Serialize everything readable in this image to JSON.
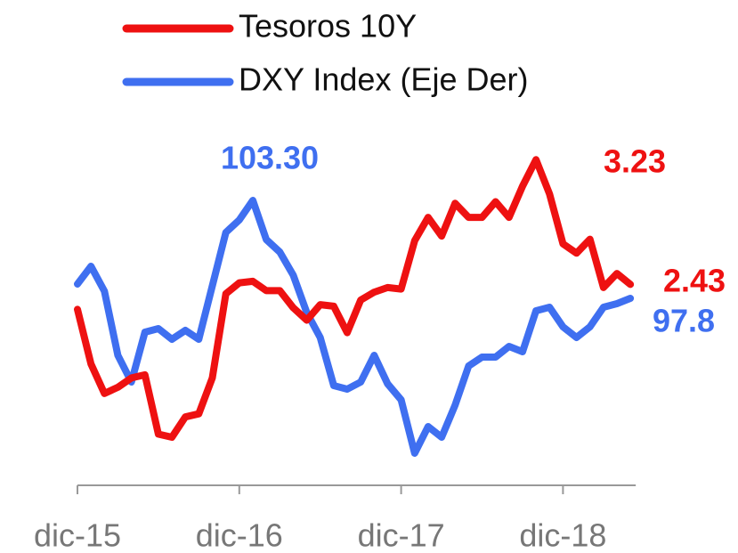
{
  "chart_data": {
    "type": "line",
    "categories": [
      "dic-15",
      null,
      null,
      null,
      null,
      null,
      null,
      null,
      null,
      null,
      null,
      null,
      "dic-16",
      null,
      null,
      null,
      null,
      null,
      null,
      null,
      null,
      null,
      null,
      null,
      "dic-17",
      null,
      null,
      null,
      null,
      null,
      null,
      null,
      null,
      null,
      null,
      null,
      "dic-18",
      null,
      null,
      null,
      null,
      null
    ],
    "ylim": [
      1.17,
      3.34
    ],
    "y2lim": [
      87.55,
      106.55
    ],
    "series": [
      {
        "name": "Tesoros 10Y",
        "color": "#ee1111",
        "values": [
          2.27,
          1.92,
          1.73,
          1.77,
          1.83,
          1.85,
          1.47,
          1.45,
          1.58,
          1.6,
          1.83,
          2.37,
          2.44,
          2.45,
          2.39,
          2.39,
          2.28,
          2.2,
          2.3,
          2.29,
          2.12,
          2.33,
          2.38,
          2.41,
          2.4,
          2.71,
          2.86,
          2.74,
          2.95,
          2.86,
          2.86,
          2.96,
          2.86,
          3.06,
          3.23,
          3.01,
          2.69,
          2.63,
          2.72,
          2.41,
          2.5,
          2.43
        ]
      },
      {
        "name": "DXY Index (Eje Der)",
        "color": "#3f6ff0",
        "axis": "y2",
        "values": [
          98.6,
          99.6,
          98.2,
          94.6,
          93.1,
          95.9,
          96.1,
          95.5,
          96.0,
          95.5,
          98.5,
          101.5,
          102.2,
          103.3,
          101.1,
          100.4,
          99.1,
          97.0,
          95.6,
          92.9,
          92.7,
          93.1,
          94.6,
          93.0,
          92.1,
          89.1,
          90.6,
          90.0,
          91.8,
          94.0,
          94.5,
          94.5,
          95.1,
          94.8,
          97.1,
          97.3,
          96.2,
          95.6,
          96.2,
          97.3,
          97.5,
          97.8
        ]
      }
    ],
    "annotations": [
      {
        "text": "103.30",
        "color": "#3f6ff0"
      },
      {
        "text": "3.23",
        "color": "#ee1111"
      },
      {
        "text": "2.43",
        "color": "#ee1111"
      },
      {
        "text": "97.8",
        "color": "#3f6ff0"
      }
    ]
  }
}
